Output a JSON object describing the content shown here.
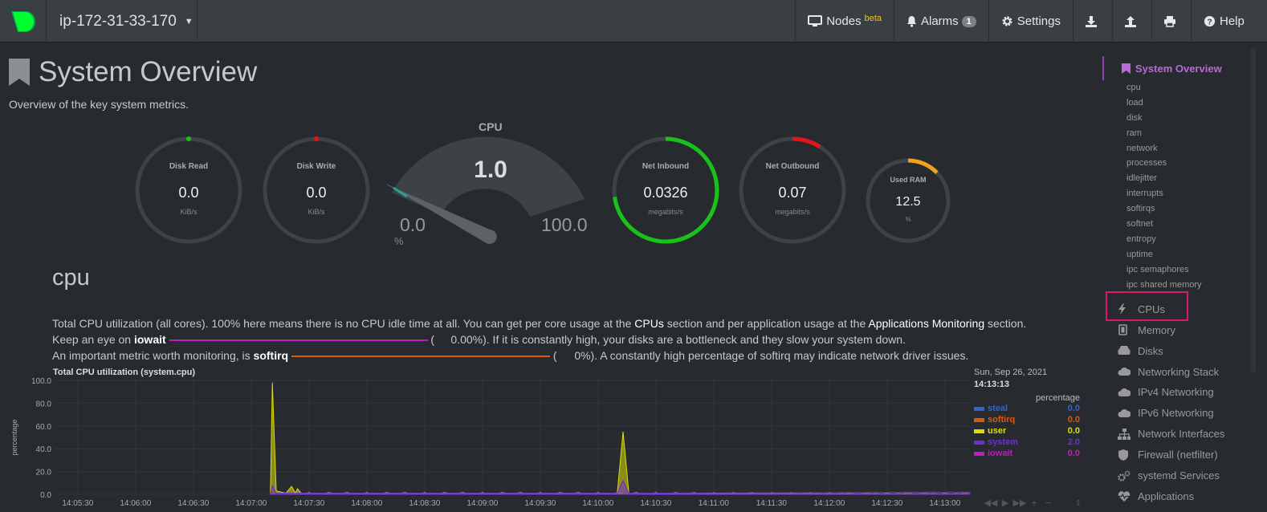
{
  "navbar": {
    "hostname": "ip-172-31-33-170",
    "nodes_label": "Nodes",
    "nodes_sup": "beta",
    "alarms_label": "Alarms",
    "alarms_count": "1",
    "settings_label": "Settings",
    "help_label": "Help"
  },
  "header": {
    "title": "System Overview",
    "subtitle": "Overview of the key system metrics."
  },
  "gauges": {
    "disk_read": {
      "title": "Disk Read",
      "value": "0.0",
      "unit": "KiB/s",
      "fill": 0.0,
      "color": "#19c219"
    },
    "disk_write": {
      "title": "Disk Write",
      "value": "0.0",
      "unit": "KiB/s",
      "fill": 0.0,
      "color": "#e6151b"
    },
    "cpu": {
      "title": "CPU",
      "value": "1.0",
      "min": "0.0",
      "max": "100.0",
      "unit": "%",
      "fill": 0.01
    },
    "net_inbound": {
      "title": "Net Inbound",
      "value": "0.0326",
      "unit": "megabits/s",
      "fill": 0.73,
      "color": "#19c219"
    },
    "net_outbound": {
      "title": "Net Outbound",
      "value": "0.07",
      "unit": "megabits/s",
      "fill": 0.09,
      "color": "#e6151b"
    },
    "used_ram": {
      "title": "Used RAM",
      "value": "12.5",
      "unit": "%",
      "fill": 0.125,
      "color": "#f0a21e"
    }
  },
  "section": {
    "heading": "cpu",
    "line1_a": "Total CPU utilization (all cores). 100% here means there is no CPU idle time at all. You can get per core usage at the ",
    "line1_link1": "CPUs",
    "line1_b": " section and per application usage at the ",
    "line1_link2": "Applications Monitoring",
    "line1_c": " section.",
    "line2_a": "Keep an eye on ",
    "line2_b": "iowait",
    "line2_open": " (",
    "line2_value": "0.00%",
    "line2_c": "). If it is constantly high, your disks are a bottleneck and they slow your system down.",
    "line3_a": "An important metric worth monitoring, is ",
    "line3_b": "softirq",
    "line3_open": " (",
    "line3_value": "0%",
    "line3_c": "). A constantly high percentage of softirq may indicate network driver issues."
  },
  "chart_data": {
    "type": "area",
    "title": "Total CPU utilization (system.cpu)",
    "ylabel": "percentage",
    "ylim": [
      0,
      100
    ],
    "yticks": [
      "100.0",
      "80.0",
      "60.0",
      "40.0",
      "20.0",
      "0.0"
    ],
    "xticks": [
      "14:05:30",
      "14:06:00",
      "14:06:30",
      "14:07:00",
      "14:07:30",
      "14:08:00",
      "14:08:30",
      "14:09:00",
      "14:09:30",
      "14:10:00",
      "14:10:30",
      "14:11:00",
      "14:11:30",
      "14:12:00",
      "14:12:30",
      "14:13:00"
    ],
    "legend": {
      "date": "Sun, Sep 26, 2021",
      "time": "14:13:13",
      "units": "percentage",
      "series": [
        {
          "name": "steal",
          "value": "0.0",
          "color": "#3366cc"
        },
        {
          "name": "softirq",
          "value": "0.0",
          "color": "#dc5b0b"
        },
        {
          "name": "user",
          "value": "0.0",
          "color": "#dddd00"
        },
        {
          "name": "system",
          "value": "2.0",
          "color": "#6f2cda"
        },
        {
          "name": "iowait",
          "value": "0.0",
          "color": "#c21bc2"
        }
      ]
    },
    "series": [
      {
        "name": "user",
        "points": [
          [
            "14:07:10",
            0
          ],
          [
            "14:07:11",
            98
          ],
          [
            "14:07:13",
            3
          ],
          [
            "14:07:18",
            1
          ],
          [
            "14:07:21",
            7
          ],
          [
            "14:07:23",
            1
          ],
          [
            "14:07:24",
            5
          ],
          [
            "14:07:26",
            1
          ],
          [
            "14:10:10",
            1
          ],
          [
            "14:10:13",
            55
          ],
          [
            "14:10:16",
            1
          ],
          [
            "14:13:13",
            0
          ]
        ]
      },
      {
        "name": "system",
        "points": [
          [
            "14:07:10",
            0
          ],
          [
            "14:07:11",
            8
          ],
          [
            "14:07:13",
            1
          ],
          [
            "14:10:10",
            1
          ],
          [
            "14:10:13",
            12
          ],
          [
            "14:10:16",
            1
          ],
          [
            "14:13:13",
            2
          ]
        ]
      }
    ]
  },
  "sidebar": {
    "active": "System Overview",
    "sub_items": [
      "cpu",
      "load",
      "disk",
      "ram",
      "network",
      "processes",
      "idlejitter",
      "interrupts",
      "softirqs",
      "softnet",
      "entropy",
      "uptime",
      "ipc semaphores",
      "ipc shared memory"
    ],
    "items": [
      {
        "label": "CPUs",
        "icon": "bolt-icon"
      },
      {
        "label": "Memory",
        "icon": "memory-icon"
      },
      {
        "label": "Disks",
        "icon": "hdd-icon"
      },
      {
        "label": "Networking Stack",
        "icon": "cloud-icon"
      },
      {
        "label": "IPv4 Networking",
        "icon": "cloud-icon"
      },
      {
        "label": "IPv6 Networking",
        "icon": "cloud-icon"
      },
      {
        "label": "Network Interfaces",
        "icon": "sitemap-icon"
      },
      {
        "label": "Firewall (netfilter)",
        "icon": "shield-icon"
      },
      {
        "label": "systemd Services",
        "icon": "gears-icon"
      },
      {
        "label": "Applications",
        "icon": "heartbeat-icon"
      }
    ]
  }
}
